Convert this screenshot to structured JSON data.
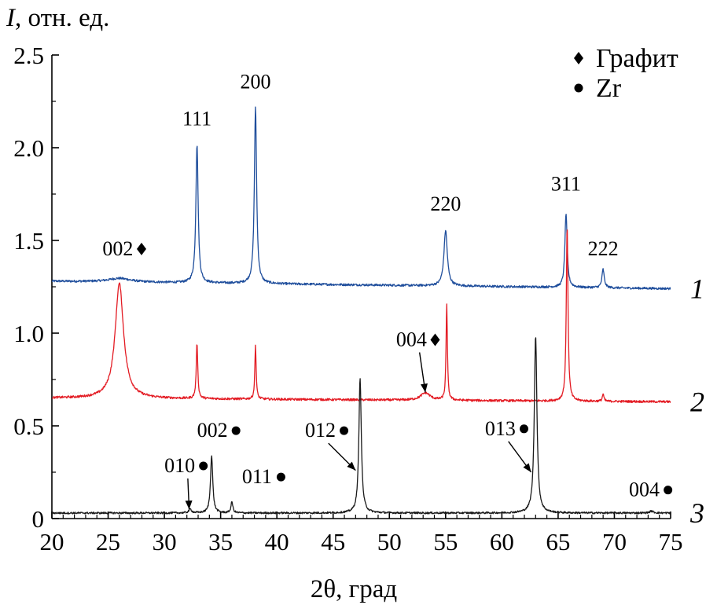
{
  "chart_data": {
    "type": "line",
    "xlabel": "2θ, град",
    "ylabel_italic": "I",
    "ylabel": ", отн. ед.",
    "xlim": [
      20,
      75
    ],
    "ylim": [
      0,
      2.5
    ],
    "xticks": [
      20,
      25,
      30,
      35,
      40,
      45,
      50,
      55,
      60,
      65,
      70,
      75
    ],
    "yticks": [
      0,
      0.5,
      1.0,
      1.5,
      2.0,
      2.5
    ],
    "ytick_labels": [
      "0",
      "0.5",
      "1.0",
      "1.5",
      "2.0",
      "2.5"
    ],
    "legend": [
      {
        "marker": "diamond",
        "label": "Графит"
      },
      {
        "marker": "dot",
        "label": "Zr"
      }
    ],
    "series": [
      {
        "label": "1",
        "color": "#1f4e9c",
        "baseline_start": 1.28,
        "baseline_end": 1.24,
        "noise": 0.006,
        "peaks": [
          {
            "x": 26.0,
            "height": 0.02,
            "width": 1.2
          },
          {
            "x": 32.9,
            "height": 0.75,
            "width": 0.12
          },
          {
            "x": 38.1,
            "height": 0.95,
            "width": 0.12
          },
          {
            "x": 55.0,
            "height": 0.3,
            "width": 0.18
          },
          {
            "x": 65.7,
            "height": 0.4,
            "width": 0.12
          },
          {
            "x": 69.0,
            "height": 0.1,
            "width": 0.12
          }
        ]
      },
      {
        "label": "2",
        "color": "#e31b23",
        "baseline_start": 0.65,
        "baseline_end": 0.63,
        "noise": 0.006,
        "peaks": [
          {
            "x": 26.0,
            "height": 0.62,
            "width": 0.45
          },
          {
            "x": 32.9,
            "height": 0.3,
            "width": 0.08
          },
          {
            "x": 38.1,
            "height": 0.29,
            "width": 0.07
          },
          {
            "x": 53.2,
            "height": 0.04,
            "width": 0.5
          },
          {
            "x": 55.1,
            "height": 0.52,
            "width": 0.07
          },
          {
            "x": 65.8,
            "height": 0.95,
            "width": 0.09
          },
          {
            "x": 69.0,
            "height": 0.04,
            "width": 0.08
          }
        ]
      },
      {
        "label": "3",
        "color": "#1a1a1a",
        "baseline_start": 0.03,
        "baseline_end": 0.03,
        "noise": 0.005,
        "peaks": [
          {
            "x": 32.3,
            "height": 0.02,
            "width": 0.15
          },
          {
            "x": 34.2,
            "height": 0.31,
            "width": 0.12
          },
          {
            "x": 36.0,
            "height": 0.06,
            "width": 0.1
          },
          {
            "x": 47.4,
            "height": 0.73,
            "width": 0.13
          },
          {
            "x": 63.0,
            "height": 0.96,
            "width": 0.14
          },
          {
            "x": 73.3,
            "height": 0.01,
            "width": 0.2
          }
        ]
      }
    ],
    "annotations": [
      {
        "text": "111",
        "x": 32.9,
        "y": 2.12
      },
      {
        "text": "200",
        "x": 38.1,
        "y": 2.32
      },
      {
        "text": "220",
        "x": 55.0,
        "y": 1.66
      },
      {
        "text": "311",
        "x": 65.7,
        "y": 1.77
      },
      {
        "text": "222",
        "x": 69.0,
        "y": 1.42
      },
      {
        "text": "002",
        "x": 24.5,
        "y": 1.42,
        "marker": "diamond"
      },
      {
        "text": "004",
        "x": 50.6,
        "y": 0.93,
        "marker": "diamond",
        "arrow_to": [
          53.2,
          0.68
        ]
      },
      {
        "text": "002",
        "x": 32.9,
        "y": 0.44,
        "marker": "dot"
      },
      {
        "text": "010",
        "x": 30.0,
        "y": 0.25,
        "marker": "dot",
        "arrow_to": [
          32.2,
          0.05
        ]
      },
      {
        "text": "011",
        "x": 36.9,
        "y": 0.19,
        "marker": "dot"
      },
      {
        "text": "012",
        "x": 42.5,
        "y": 0.44,
        "marker": "dot",
        "arrow_to": [
          47.0,
          0.26
        ]
      },
      {
        "text": "013",
        "x": 58.5,
        "y": 0.45,
        "marker": "dot",
        "arrow_to": [
          62.6,
          0.25
        ]
      },
      {
        "text": "004",
        "x": 71.3,
        "y": 0.12,
        "marker": "dot"
      }
    ]
  }
}
